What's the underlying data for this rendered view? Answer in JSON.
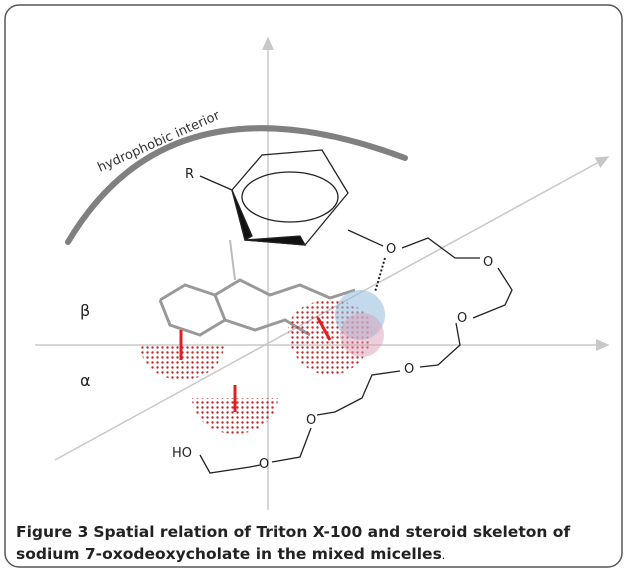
{
  "figure": {
    "hydrophobic_label": "hydrophobic interior",
    "substituent": "R",
    "oxygens": [
      "O",
      "O",
      "O",
      "O",
      "O",
      "O"
    ],
    "hydroxyl": "HO",
    "beta": "β",
    "alpha": "α"
  },
  "caption": {
    "label": "Figure 3",
    "text": "Spatial relation of Triton X-100 and steroid skeleton of sodium 7-oxodeoxycholate in the mixed micelles",
    "period": "."
  }
}
